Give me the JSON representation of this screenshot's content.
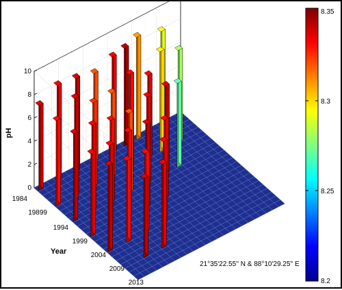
{
  "chart_data": {
    "type": "bar3d",
    "title": "",
    "zlabel": "pH",
    "ylabel": "Year",
    "xlabel": "21°35'22.55'' N & 88°10'29.25'' E",
    "zlim": [
      0,
      10
    ],
    "z_ticks": [
      "0",
      "2",
      "4",
      "6",
      "8",
      "10"
    ],
    "year_ticks": [
      "1984",
      "19899",
      "1994",
      "1999",
      "2004",
      "2009",
      "2013"
    ],
    "colorbar": {
      "range": [
        8.2,
        8.35
      ],
      "ticks": [
        "8.35",
        "8.3",
        "8.25",
        "8.2"
      ],
      "colormap": "jet"
    },
    "grid": true,
    "bars": [
      {
        "row": 0,
        "col": 0,
        "value": 7.3,
        "color_value": 8.34
      },
      {
        "row": 0,
        "col": 3,
        "value": 8.2,
        "color_value": 8.335
      },
      {
        "row": 0,
        "col": 6,
        "value": 8.0,
        "color_value": 8.34
      },
      {
        "row": 0,
        "col": 9,
        "value": 7.6,
        "color_value": 8.32
      },
      {
        "row": 0,
        "col": 12,
        "value": 8.2,
        "color_value": 8.335
      },
      {
        "row": 0,
        "col": 14,
        "value": 8.4,
        "color_value": 8.345
      },
      {
        "row": 0,
        "col": 16,
        "value": 8.8,
        "color_value": 8.31
      },
      {
        "row": 0,
        "col": 20,
        "value": 8.2,
        "color_value": 8.29
      },
      {
        "row": 4,
        "col": 0,
        "value": 7.3,
        "color_value": 8.33
      },
      {
        "row": 4,
        "col": 3,
        "value": 8.4,
        "color_value": 8.34
      },
      {
        "row": 4,
        "col": 6,
        "value": 7.2,
        "color_value": 8.325
      },
      {
        "row": 4,
        "col": 9,
        "value": 7.2,
        "color_value": 8.32
      },
      {
        "row": 4,
        "col": 12,
        "value": 8.0,
        "color_value": 8.33
      },
      {
        "row": 4,
        "col": 15,
        "value": 7.1,
        "color_value": 8.335
      },
      {
        "row": 4,
        "col": 17,
        "value": 8.6,
        "color_value": 8.3
      },
      {
        "row": 4,
        "col": 20,
        "value": 7.9,
        "color_value": 8.28
      },
      {
        "row": 8,
        "col": 0,
        "value": 7.5,
        "color_value": 8.34
      },
      {
        "row": 8,
        "col": 3,
        "value": 7.4,
        "color_value": 8.335
      },
      {
        "row": 8,
        "col": 6,
        "value": 7.0,
        "color_value": 8.33
      },
      {
        "row": 8,
        "col": 9,
        "value": 6.8,
        "color_value": 8.32
      },
      {
        "row": 8,
        "col": 12,
        "value": 7.4,
        "color_value": 8.335
      },
      {
        "row": 8,
        "col": 15,
        "value": 7.5,
        "color_value": 8.34
      },
      {
        "row": 8,
        "col": 17,
        "value": 7.2,
        "color_value": 8.27
      },
      {
        "row": 12,
        "col": 0,
        "value": 7.1,
        "color_value": 8.335
      },
      {
        "row": 12,
        "col": 3,
        "value": 7.0,
        "color_value": 8.335
      },
      {
        "row": 12,
        "col": 6,
        "value": 7.3,
        "color_value": 8.33
      },
      {
        "row": 12,
        "col": 9,
        "value": 7.2,
        "color_value": 8.34
      },
      {
        "row": 12,
        "col": 12,
        "value": 6.7,
        "color_value": 8.335
      },
      {
        "row": 16,
        "col": 0,
        "value": 7.4,
        "color_value": 8.34
      },
      {
        "row": 16,
        "col": 3,
        "value": 7.0,
        "color_value": 8.33
      },
      {
        "row": 16,
        "col": 6,
        "value": 6.8,
        "color_value": 8.33
      },
      {
        "row": 16,
        "col": 9,
        "value": 7.0,
        "color_value": 8.335
      },
      {
        "row": 20,
        "col": 3,
        "value": 6.8,
        "color_value": 8.34
      },
      {
        "row": 20,
        "col": 6,
        "value": 7.2,
        "color_value": 8.335
      }
    ]
  }
}
